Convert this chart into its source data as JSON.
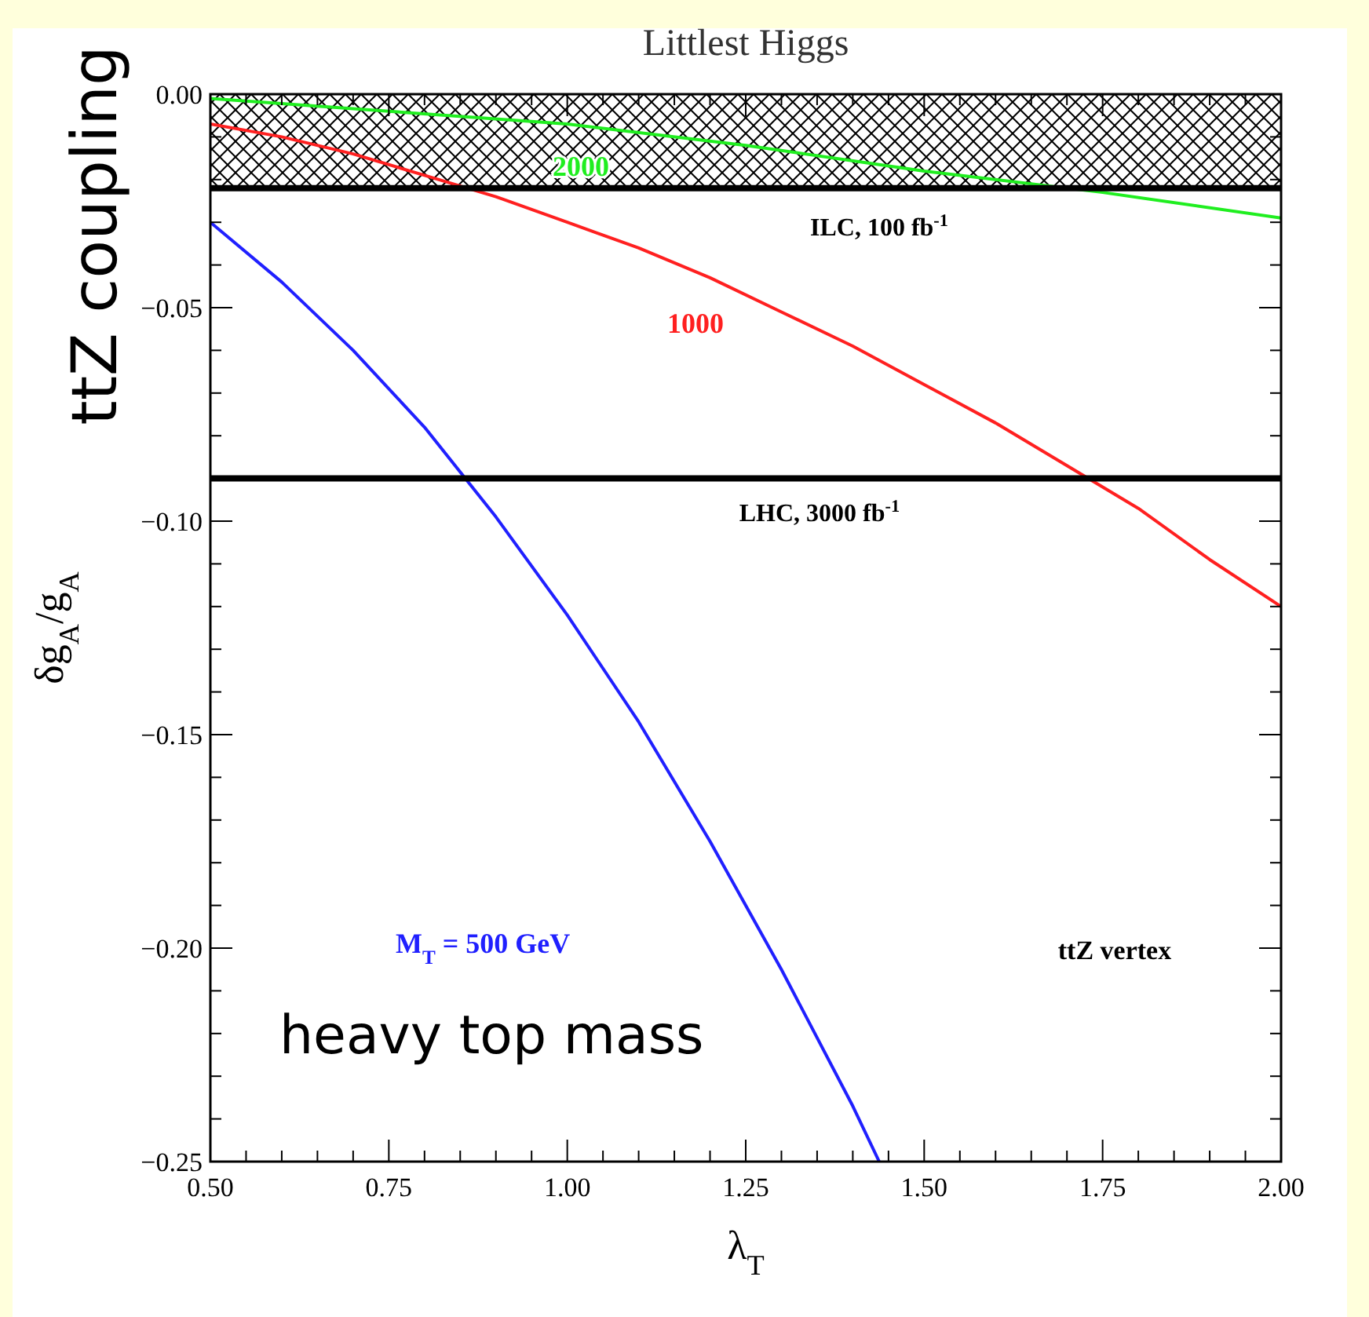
{
  "chart_data": {
    "type": "line",
    "title": "Littlest Higgs",
    "xlabel": "λ$_{T}$",
    "ylabel": "δg$_{A}$/g$_{A}$",
    "xlim": [
      0.5,
      2.0
    ],
    "ylim": [
      -0.25,
      0.0
    ],
    "xticks": [
      {
        "value": 0.5,
        "label": "0.50"
      },
      {
        "value": 0.55,
        "label": null
      },
      {
        "value": 0.6,
        "label": null
      },
      {
        "value": 0.65,
        "label": null
      },
      {
        "value": 0.7,
        "label": null
      },
      {
        "value": 0.75,
        "label": "0.75"
      },
      {
        "value": 0.8,
        "label": null
      },
      {
        "value": 0.85,
        "label": null
      },
      {
        "value": 0.9,
        "label": null
      },
      {
        "value": 0.95,
        "label": null
      },
      {
        "value": 1.0,
        "label": "1.00"
      },
      {
        "value": 1.05,
        "label": null
      },
      {
        "value": 1.1,
        "label": null
      },
      {
        "value": 1.15,
        "label": null
      },
      {
        "value": 1.2,
        "label": null
      },
      {
        "value": 1.25,
        "label": "1.25"
      },
      {
        "value": 1.3,
        "label": null
      },
      {
        "value": 1.35,
        "label": null
      },
      {
        "value": 1.4,
        "label": null
      },
      {
        "value": 1.45,
        "label": null
      },
      {
        "value": 1.5,
        "label": "1.50"
      },
      {
        "value": 1.55,
        "label": null
      },
      {
        "value": 1.6,
        "label": null
      },
      {
        "value": 1.65,
        "label": null
      },
      {
        "value": 1.7,
        "label": null
      },
      {
        "value": 1.75,
        "label": "1.75"
      },
      {
        "value": 1.8,
        "label": null
      },
      {
        "value": 1.85,
        "label": null
      },
      {
        "value": 1.9,
        "label": null
      },
      {
        "value": 1.95,
        "label": null
      },
      {
        "value": 2.0,
        "label": "2.00"
      }
    ],
    "yticks": [
      {
        "value": -0.25,
        "label": "−0.25"
      },
      {
        "value": -0.24,
        "label": null
      },
      {
        "value": -0.23,
        "label": null
      },
      {
        "value": -0.22,
        "label": null
      },
      {
        "value": -0.21,
        "label": null
      },
      {
        "value": -0.2,
        "label": "−0.20"
      },
      {
        "value": -0.19,
        "label": null
      },
      {
        "value": -0.18,
        "label": null
      },
      {
        "value": -0.17,
        "label": null
      },
      {
        "value": -0.16,
        "label": null
      },
      {
        "value": -0.15,
        "label": "−0.15"
      },
      {
        "value": -0.14,
        "label": null
      },
      {
        "value": -0.13,
        "label": null
      },
      {
        "value": -0.12,
        "label": null
      },
      {
        "value": -0.11,
        "label": null
      },
      {
        "value": -0.1,
        "label": "−0.10"
      },
      {
        "value": -0.09,
        "label": null
      },
      {
        "value": -0.08,
        "label": null
      },
      {
        "value": -0.07,
        "label": null
      },
      {
        "value": -0.06,
        "label": null
      },
      {
        "value": -0.05,
        "label": "−0.05"
      },
      {
        "value": -0.04,
        "label": null
      },
      {
        "value": -0.03,
        "label": null
      },
      {
        "value": -0.02,
        "label": null
      },
      {
        "value": -0.01,
        "label": null
      },
      {
        "value": 0.0,
        "label": "0.00"
      }
    ],
    "grid": false,
    "marker": "none",
    "line_style": "solid",
    "series": [
      {
        "name": "M$_{T}$ = 500 GeV",
        "color": "#2020ff",
        "x": [
          0.5,
          0.6,
          0.7,
          0.8,
          0.9,
          1.0,
          1.1,
          1.2,
          1.3,
          1.4,
          1.437
        ],
        "values": [
          -0.03,
          -0.044,
          -0.06,
          -0.078,
          -0.099,
          -0.122,
          -0.147,
          -0.175,
          -0.205,
          -0.237,
          -0.25
        ]
      },
      {
        "name": "1000",
        "color": "#ff2020",
        "x": [
          0.5,
          0.6,
          0.7,
          0.8,
          0.9,
          1.0,
          1.1,
          1.2,
          1.3,
          1.4,
          1.5,
          1.6,
          1.7,
          1.8,
          1.9,
          2.0
        ],
        "values": [
          -0.007,
          -0.01,
          -0.014,
          -0.019,
          -0.024,
          -0.03,
          -0.036,
          -0.043,
          -0.051,
          -0.059,
          -0.068,
          -0.077,
          -0.087,
          -0.097,
          -0.109,
          -0.12
        ]
      },
      {
        "name": "2000",
        "color": "#20ee20",
        "x": [
          0.5,
          0.75,
          1.0,
          1.25,
          1.5,
          1.75,
          2.0
        ],
        "values": [
          -0.001,
          -0.004,
          -0.007,
          -0.012,
          -0.018,
          -0.023,
          -0.029
        ]
      }
    ],
    "ref_lines": [
      {
        "axis": "y",
        "value": -0.022,
        "label": "ILC, 100 fb$^{-1}$",
        "color": "#000000"
      },
      {
        "axis": "y",
        "value": -0.09,
        "label": "LHC, 3000 fb$^{-1}$",
        "color": "#000000"
      }
    ],
    "bands": [
      {
        "axis": "y",
        "from": -0.022,
        "to": 0.0,
        "label": null
      }
    ],
    "annotations": [
      "ttZ vertex",
      "heavy top mass",
      "ttZ coupling"
    ]
  }
}
